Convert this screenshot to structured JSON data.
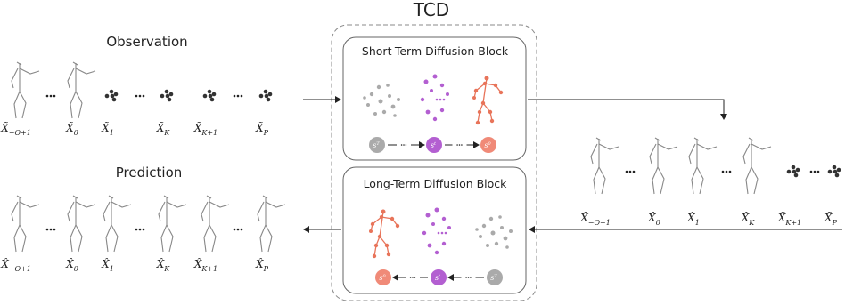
{
  "title": "TCD",
  "observation": {
    "title": "Observation",
    "labels": [
      {
        "symbol": "X̃",
        "sub": "−O+1"
      },
      {
        "symbol": "X̃",
        "sub": "0"
      },
      {
        "symbol": "X̃",
        "sub": "1"
      },
      {
        "symbol": "X̃",
        "sub": "K"
      },
      {
        "symbol": "X̃",
        "sub": "K+1"
      },
      {
        "symbol": "X̃",
        "sub": "P"
      }
    ]
  },
  "prediction": {
    "title": "Prediction",
    "labels": [
      {
        "symbol": "X̂",
        "sub": "−O+1"
      },
      {
        "symbol": "X̂",
        "sub": "0"
      },
      {
        "symbol": "X̂",
        "sub": "1"
      },
      {
        "symbol": "X̂",
        "sub": "K"
      },
      {
        "symbol": "X̂",
        "sub": "K+1"
      },
      {
        "symbol": "X̂",
        "sub": "P"
      }
    ]
  },
  "output": {
    "labels": [
      {
        "symbol": "X̂",
        "sub": "−O+1"
      },
      {
        "symbol": "X̂",
        "sub": "0"
      },
      {
        "symbol": "X̂",
        "sub": "1"
      },
      {
        "symbol": "X̂",
        "sub": "K"
      },
      {
        "symbol": "X̃",
        "sub": "K+1"
      },
      {
        "symbol": "X̃",
        "sub": "P"
      }
    ]
  },
  "short_block": {
    "title": "Short-Term Diffusion Block",
    "steps": [
      {
        "base": "s",
        "sup": "T"
      },
      {
        "base": "s",
        "sup": "t"
      },
      {
        "base": "s",
        "sup": "0"
      }
    ]
  },
  "long_block": {
    "title": "Long-Term Diffusion Block",
    "steps": [
      {
        "base": "s",
        "sup": "0"
      },
      {
        "base": "s",
        "sup": "t"
      },
      {
        "base": "s",
        "sup": "T"
      }
    ]
  }
}
